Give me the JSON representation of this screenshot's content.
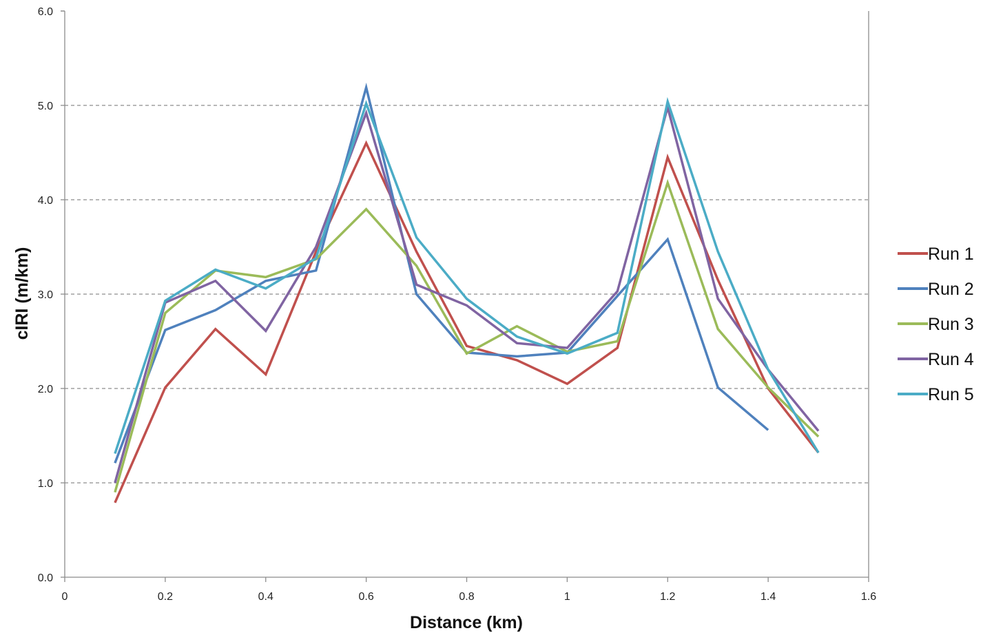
{
  "chart_data": {
    "type": "line",
    "title": "",
    "xlabel": "Distance (km)",
    "ylabel": "cIRI (m/km)",
    "xlim": [
      0,
      1.6
    ],
    "ylim": [
      0,
      6
    ],
    "x_ticks": [
      "0",
      "0.2",
      "0.4",
      "0.6",
      "0.8",
      "1",
      "1.2",
      "1.4",
      "1.6"
    ],
    "y_ticks": [
      "0.0",
      "1.0",
      "2.0",
      "3.0",
      "4.0",
      "5.0",
      "6.0"
    ],
    "grid": "horizontal dashed",
    "legend_position": "right",
    "series": [
      {
        "name": "Run 1",
        "color": "#C0504D",
        "points": [
          [
            0.1,
            0.79
          ],
          [
            0.2,
            2.01
          ],
          [
            0.3,
            2.63
          ],
          [
            0.4,
            2.15
          ],
          [
            0.5,
            3.45
          ],
          [
            0.6,
            4.6
          ],
          [
            0.7,
            3.45
          ],
          [
            0.8,
            2.45
          ],
          [
            0.9,
            2.3
          ],
          [
            1.0,
            2.05
          ],
          [
            1.1,
            2.43
          ],
          [
            1.2,
            4.45
          ],
          [
            1.3,
            3.15
          ],
          [
            1.4,
            2.0
          ],
          [
            1.5,
            1.32
          ]
        ]
      },
      {
        "name": "Run 2",
        "color": "#4F81BD",
        "points": [
          [
            0.1,
            1.21
          ],
          [
            0.2,
            2.62
          ],
          [
            0.3,
            2.83
          ],
          [
            0.4,
            3.14
          ],
          [
            0.5,
            3.25
          ],
          [
            0.6,
            5.19
          ],
          [
            0.7,
            3.0
          ],
          [
            0.8,
            2.38
          ],
          [
            0.9,
            2.34
          ],
          [
            1.0,
            2.38
          ],
          [
            1.1,
            2.98
          ],
          [
            1.2,
            3.58
          ],
          [
            1.3,
            2.01
          ],
          [
            1.4,
            1.56
          ]
        ]
      },
      {
        "name": "Run 3",
        "color": "#9BBB59",
        "points": [
          [
            0.1,
            0.9
          ],
          [
            0.2,
            2.8
          ],
          [
            0.3,
            3.25
          ],
          [
            0.4,
            3.18
          ],
          [
            0.5,
            3.37
          ],
          [
            0.6,
            3.9
          ],
          [
            0.7,
            3.3
          ],
          [
            0.8,
            2.37
          ],
          [
            0.9,
            2.66
          ],
          [
            1.0,
            2.39
          ],
          [
            1.1,
            2.5
          ],
          [
            1.2,
            4.18
          ],
          [
            1.3,
            2.63
          ],
          [
            1.4,
            2.01
          ],
          [
            1.5,
            1.49
          ]
        ]
      },
      {
        "name": "Run 4",
        "color": "#8064A2",
        "points": [
          [
            0.1,
            1.0
          ],
          [
            0.2,
            2.91
          ],
          [
            0.3,
            3.14
          ],
          [
            0.4,
            2.61
          ],
          [
            0.5,
            3.5
          ],
          [
            0.6,
            4.92
          ],
          [
            0.7,
            3.1
          ],
          [
            0.8,
            2.88
          ],
          [
            0.9,
            2.48
          ],
          [
            1.0,
            2.43
          ],
          [
            1.1,
            3.03
          ],
          [
            1.2,
            4.98
          ],
          [
            1.3,
            2.95
          ],
          [
            1.4,
            2.2
          ],
          [
            1.5,
            1.55
          ]
        ]
      },
      {
        "name": "Run 5",
        "color": "#4BACC6",
        "points": [
          [
            0.1,
            1.31
          ],
          [
            0.2,
            2.93
          ],
          [
            0.3,
            3.26
          ],
          [
            0.4,
            3.06
          ],
          [
            0.5,
            3.38
          ],
          [
            0.6,
            5.02
          ],
          [
            0.7,
            3.6
          ],
          [
            0.8,
            2.95
          ],
          [
            0.9,
            2.55
          ],
          [
            1.0,
            2.37
          ],
          [
            1.1,
            2.59
          ],
          [
            1.2,
            5.04
          ],
          [
            1.3,
            3.45
          ],
          [
            1.4,
            2.2
          ],
          [
            1.5,
            1.32
          ]
        ]
      }
    ]
  }
}
